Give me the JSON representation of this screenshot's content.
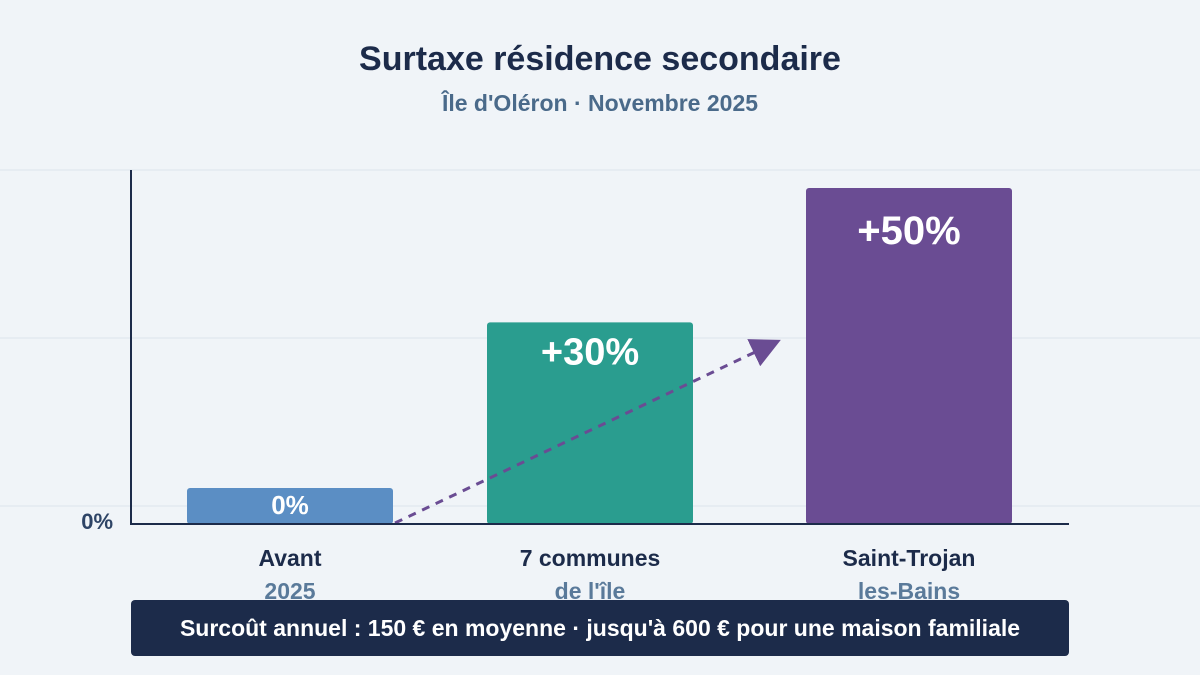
{
  "chart_data": {
    "type": "bar",
    "title": "Surtaxe résidence secondaire",
    "subtitle": "Île d'Oléron · Novembre 2025",
    "categories": [
      {
        "line1": "Avant",
        "line2": "2025"
      },
      {
        "line1": "7 communes",
        "line2": "de l'île"
      },
      {
        "line1": "Saint-Trojan",
        "line2": "les-Bains"
      }
    ],
    "values": [
      0,
      30,
      50
    ],
    "value_labels": [
      "0%",
      "+30%",
      "+50%"
    ],
    "colors": [
      "#5b8ec4",
      "#2a9d8f",
      "#6a4c93"
    ],
    "y_tick_labels": [
      "0%"
    ],
    "ylim": [
      0,
      50
    ],
    "grid": true,
    "annotation": "dashed upward trend arrow across bars"
  },
  "banner_text": "Surcoût annuel : 150 € en moyenne · jusqu'à 600 € pour une maison familiale",
  "colors": {
    "background": "#f0f4f8",
    "title": "#1c2b4a",
    "subtitle": "#4a6a8a",
    "banner": "#1c2b4a",
    "arrow": "#6a4c93"
  }
}
